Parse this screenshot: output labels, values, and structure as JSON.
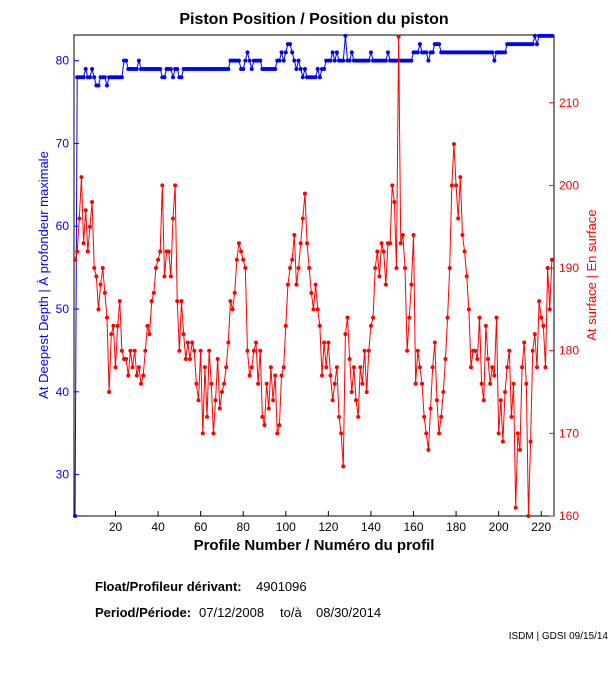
{
  "chart_data": {
    "type": "line",
    "title": "Piston Position / Position du piston",
    "xlabel": "Profile Number / Numéro du profil",
    "ylabel": "At Deepest Depth | À profondeur maximale",
    "y2label": "At surface | En surface",
    "xlim": [
      0.5,
      226
    ],
    "xticks": [
      20,
      40,
      60,
      80,
      100,
      120,
      140,
      160,
      180,
      200,
      220
    ],
    "ylim": [
      25,
      83.1
    ],
    "yticks": [
      30,
      40,
      50,
      60,
      70,
      80
    ],
    "y2lim": [
      160,
      218.2
    ],
    "y2ticks": [
      160,
      170,
      180,
      190,
      200,
      210
    ],
    "x": [
      1,
      2,
      3,
      4,
      5,
      6,
      7,
      8,
      9,
      10,
      11,
      12,
      13,
      14,
      15,
      16,
      17,
      18,
      19,
      20,
      21,
      22,
      23,
      24,
      25,
      26,
      27,
      28,
      29,
      30,
      31,
      32,
      33,
      34,
      35,
      36,
      37,
      38,
      39,
      40,
      41,
      42,
      43,
      44,
      45,
      46,
      47,
      48,
      49,
      50,
      51,
      52,
      53,
      54,
      55,
      56,
      57,
      58,
      59,
      60,
      61,
      62,
      63,
      64,
      65,
      66,
      67,
      68,
      69,
      70,
      71,
      72,
      73,
      74,
      75,
      76,
      77,
      78,
      79,
      80,
      81,
      82,
      83,
      84,
      85,
      86,
      87,
      88,
      89,
      90,
      91,
      92,
      93,
      94,
      95,
      96,
      97,
      98,
      99,
      100,
      101,
      102,
      103,
      104,
      105,
      106,
      107,
      108,
      109,
      110,
      111,
      112,
      113,
      114,
      115,
      116,
      117,
      118,
      119,
      120,
      121,
      122,
      123,
      124,
      125,
      126,
      127,
      128,
      129,
      130,
      131,
      132,
      133,
      134,
      135,
      136,
      137,
      138,
      139,
      140,
      141,
      142,
      143,
      144,
      145,
      146,
      147,
      148,
      149,
      150,
      151,
      152,
      153,
      154,
      155,
      156,
      157,
      158,
      159,
      160,
      161,
      162,
      163,
      164,
      165,
      166,
      167,
      168,
      169,
      170,
      171,
      172,
      173,
      174,
      175,
      176,
      177,
      178,
      179,
      180,
      181,
      182,
      183,
      184,
      185,
      186,
      187,
      188,
      189,
      190,
      191,
      192,
      193,
      194,
      195,
      196,
      197,
      198,
      199,
      200,
      201,
      202,
      203,
      204,
      205,
      206,
      207,
      208,
      209,
      210,
      211,
      212,
      213,
      214,
      215,
      216,
      217,
      218,
      219,
      220,
      221,
      222,
      223,
      224,
      225
    ],
    "series": [
      {
        "name": "At Deepest Depth",
        "color": "#0000ff",
        "axis": "y",
        "values": [
          25,
          78,
          78,
          78,
          78,
          79,
          78,
          78,
          79,
          78,
          77,
          77,
          78,
          78,
          78,
          77,
          78,
          78,
          78,
          78,
          78,
          78,
          78,
          80,
          80,
          79,
          79,
          79,
          79,
          79,
          80,
          79,
          79,
          79,
          79,
          79,
          79,
          79,
          79,
          79,
          79,
          78,
          78,
          79,
          79,
          79,
          78,
          79,
          79,
          78,
          78,
          79,
          79,
          79,
          79,
          79,
          79,
          79,
          79,
          79,
          79,
          79,
          79,
          79,
          79,
          79,
          79,
          79,
          79,
          79,
          79,
          79,
          79,
          80,
          80,
          80,
          80,
          80,
          79,
          79,
          80,
          81,
          80,
          79,
          80,
          80,
          80,
          80,
          79,
          79,
          79,
          79,
          79,
          79,
          79,
          80,
          80,
          81,
          80,
          81,
          82,
          82,
          81,
          80,
          79,
          80,
          79,
          78,
          79,
          78,
          78,
          78,
          78,
          78,
          79,
          78,
          79,
          79,
          80,
          80,
          80,
          81,
          80,
          81,
          80,
          80,
          80,
          83,
          80,
          80,
          81,
          80,
          80,
          80,
          80,
          80,
          80,
          80,
          80,
          81,
          80,
          80,
          80,
          80,
          80,
          80,
          80,
          81,
          80,
          80,
          80,
          80,
          80,
          80,
          80,
          80,
          80,
          80,
          80,
          81,
          81,
          81,
          82,
          81,
          81,
          81,
          80,
          81,
          81,
          82,
          82,
          82,
          81,
          81,
          81,
          81,
          81,
          81,
          81,
          81,
          81,
          81,
          81,
          81,
          81,
          81,
          81,
          81,
          81,
          81,
          81,
          81,
          81,
          81,
          81,
          81,
          81,
          80,
          81,
          81,
          81,
          81,
          81,
          82,
          82,
          82,
          82,
          82,
          82,
          82,
          82,
          82,
          82,
          82,
          82,
          82,
          83,
          82,
          83,
          83,
          83,
          83,
          83,
          83,
          83
        ]
      },
      {
        "name": "At surface",
        "color": "#ff0000",
        "axis": "y2",
        "values": [
          191,
          192,
          196,
          201,
          193,
          197,
          192,
          195,
          198,
          190,
          189,
          185,
          188,
          190,
          187,
          184,
          175,
          182,
          183,
          178,
          183,
          186,
          180,
          179,
          179,
          177,
          180,
          178,
          180,
          177,
          178,
          176,
          177,
          180,
          183,
          182,
          186,
          187,
          190,
          191,
          192,
          200,
          189,
          192,
          192,
          189,
          196,
          200,
          186,
          180,
          186,
          182,
          179,
          181,
          179,
          181,
          180,
          176,
          174,
          180,
          170,
          178,
          172,
          180,
          176,
          170,
          174,
          179,
          173,
          175,
          176,
          178,
          181,
          186,
          185,
          187,
          191,
          193,
          192,
          191,
          190,
          180,
          177,
          178,
          180,
          181,
          176,
          180,
          172,
          171,
          176,
          173,
          178,
          174,
          177,
          170,
          171,
          177,
          178,
          183,
          188,
          190,
          191,
          194,
          188,
          190,
          193,
          196,
          199,
          193,
          190,
          187,
          185,
          188,
          185,
          183,
          177,
          181,
          178,
          181,
          177,
          174,
          176,
          178,
          172,
          170,
          166,
          182,
          184,
          179,
          175,
          178,
          174,
          172,
          178,
          176,
          180,
          175,
          180,
          183,
          184,
          190,
          192,
          189,
          193,
          192,
          188,
          193,
          193,
          200,
          198,
          190,
          218,
          193,
          194,
          190,
          180,
          184,
          188,
          194,
          176,
          180,
          178,
          176,
          172,
          170,
          168,
          173,
          178,
          181,
          174,
          170,
          172,
          175,
          179,
          184,
          190,
          200,
          205,
          200,
          196,
          201,
          194,
          192,
          189,
          185,
          178,
          180,
          180,
          179,
          184,
          176,
          174,
          183,
          179,
          176,
          178,
          177,
          184,
          170,
          174,
          169,
          175,
          178,
          180,
          172,
          176,
          161,
          170,
          168,
          178,
          181,
          176,
          160,
          169,
          180,
          182,
          178,
          186,
          184,
          183,
          178,
          190,
          185,
          191
        ]
      }
    ],
    "footer": {
      "float_label": "Float/Profileur dérivant:",
      "float_id": "4901096",
      "period_label": "Period/Période:",
      "start": "07/12/2008",
      "to": "to/à",
      "end": "08/30/2014",
      "credit": "ISDM | GDSI 09/15/14"
    }
  }
}
